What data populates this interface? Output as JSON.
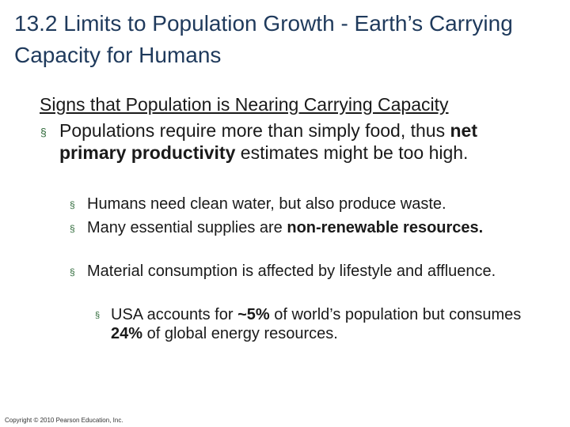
{
  "slide": {
    "title": "13.2 Limits to Population Growth - Earth’s Carrying Capacity for Humans",
    "subheading": "Signs that Population is Nearing Carrying Capacity",
    "bullet_glyph": "§",
    "item1": {
      "pre": "Populations require more than simply food, thus ",
      "bold": "net primary productivity",
      "post": " estimates might be too high."
    },
    "item2": {
      "text": "Humans need clean water, but also produce waste."
    },
    "item3": {
      "pre": "Many essential supplies are ",
      "bold": "non-renewable resources."
    },
    "item4": {
      "text": "Material consumption is affected by lifestyle and affluence."
    },
    "item5": {
      "pre": "USA accounts for ",
      "bold1": "~5%",
      "mid": " of world’s population but consumes ",
      "bold2": "24%",
      "post": " of global energy resources."
    },
    "footer": "Copyright © 2010 Pearson Education, Inc."
  }
}
